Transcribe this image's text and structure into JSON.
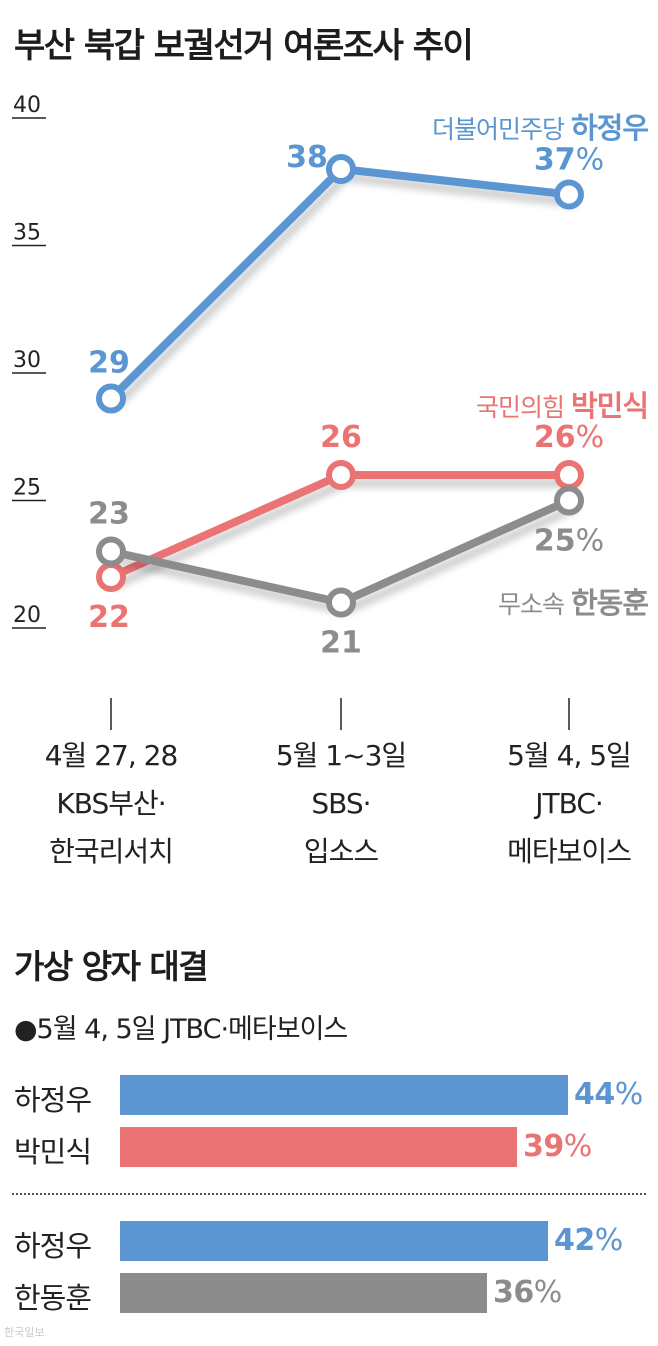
{
  "title": "부산 북갑 보궐선거 여론조사 추이",
  "colors": {
    "ha": "#5b96d2",
    "park": "#ea7373",
    "han": "#8c8c8c",
    "axis": "#222222"
  },
  "chart_data": {
    "type": "line",
    "title": "부산 북갑 보궐선거 여론조사 추이",
    "ylim": [
      20,
      40
    ],
    "yticks": [
      "40",
      "35",
      "30",
      "25",
      "20"
    ],
    "categories": [
      [
        "4월 27, 28",
        "KBS부산·",
        "한국리서치"
      ],
      [
        "5월 1~3일",
        "SBS·",
        "입소스"
      ],
      [
        "5월 4, 5일",
        "JTBC·",
        "메타보이스"
      ]
    ],
    "series": [
      {
        "name": "더불어민주당 하정우",
        "party": "더불어민주당",
        "candidate": "하정우",
        "values": [
          29,
          38,
          37
        ],
        "labels": [
          "29",
          "38",
          "37"
        ],
        "unit": "%",
        "color_key": "ha"
      },
      {
        "name": "국민의힘 박민식",
        "party": "국민의힘",
        "candidate": "박민식",
        "values": [
          22,
          26,
          26
        ],
        "labels": [
          "22",
          "26",
          "26"
        ],
        "unit": "%",
        "color_key": "park"
      },
      {
        "name": "무소속 한동훈",
        "party": "무소속",
        "candidate": "한동훈",
        "values": [
          23,
          21,
          25
        ],
        "labels": [
          "23",
          "21",
          "25"
        ],
        "unit": "%",
        "color_key": "han"
      }
    ]
  },
  "matchup": {
    "title": "가상 양자 대결",
    "note": "●5월 4, 5일 JTBC·메타보이스",
    "scale_max": 44,
    "groups": [
      [
        {
          "name": "하정우",
          "value": 44,
          "label": "44",
          "color_key": "ha"
        },
        {
          "name": "박민식",
          "value": 39,
          "label": "39",
          "color_key": "park"
        }
      ],
      [
        {
          "name": "하정우",
          "value": 42,
          "label": "42",
          "color_key": "ha"
        },
        {
          "name": "한동훈",
          "value": 36,
          "label": "36",
          "color_key": "han"
        }
      ]
    ],
    "unit": "%"
  },
  "credit": "한국일보"
}
